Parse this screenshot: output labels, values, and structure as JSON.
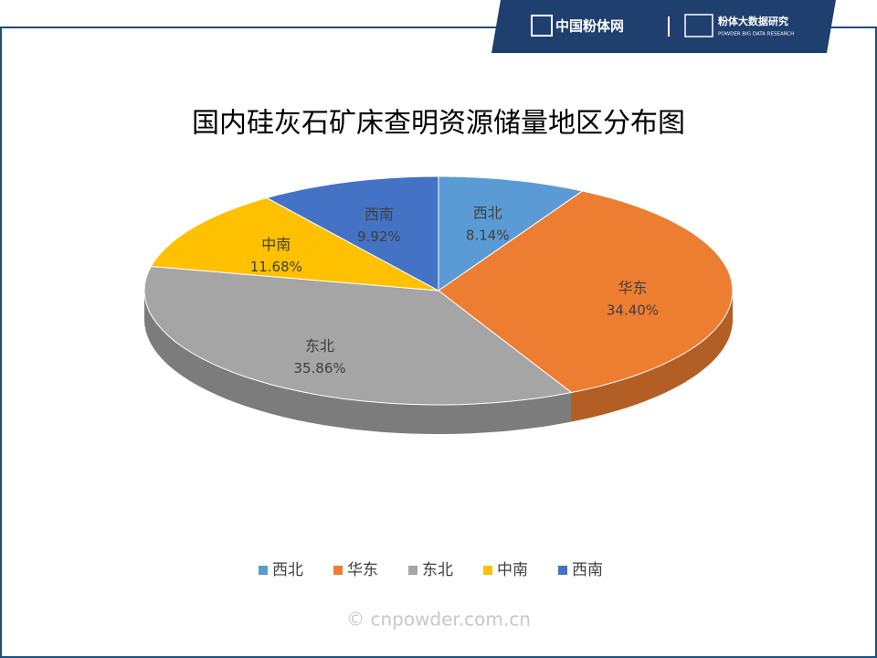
{
  "header": {
    "brand": "中国粉体网",
    "research": "粉体大数据研究",
    "research_en": "POWDER BIG DATA RESEARCH"
  },
  "watermark": "© cnpowder.com.cn",
  "chart_data": {
    "type": "pie",
    "title": "国内硅灰石矿床查明资源储量地区分布图",
    "categories": [
      "西北",
      "华东",
      "东北",
      "中南",
      "西南"
    ],
    "values": [
      8.14,
      34.4,
      35.86,
      11.68,
      9.92
    ],
    "value_labels": [
      "8.14%",
      "34.40%",
      "35.86%",
      "11.68%",
      "9.92%"
    ],
    "colors": [
      "#5b9bd5",
      "#ed7d31",
      "#a5a5a5",
      "#ffc000",
      "#4472c4"
    ],
    "legend": "bottom"
  }
}
